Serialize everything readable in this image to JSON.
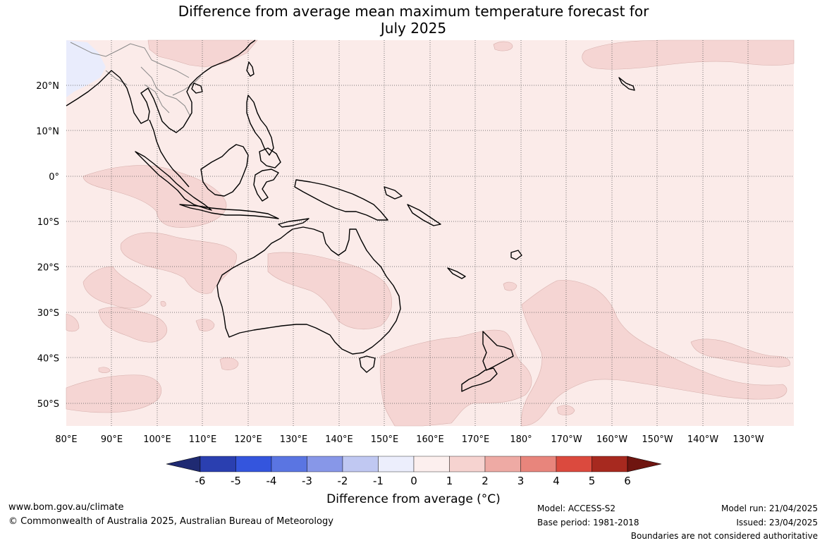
{
  "title_line1": "Difference from average mean maximum temperature forecast for",
  "title_line2": "July 2025",
  "map": {
    "lon_labels": [
      "80°E",
      "90°E",
      "100°E",
      "110°E",
      "120°E",
      "130°E",
      "140°E",
      "150°E",
      "160°E",
      "170°E",
      "180°",
      "170°W",
      "160°W",
      "150°W",
      "140°W",
      "130°W"
    ],
    "lat_labels": [
      "20°N",
      "10°N",
      "0°",
      "10°S",
      "20°S",
      "30°S",
      "40°S",
      "50°S"
    ],
    "colors": {
      "anomaly_0_to_1": "#fbebe9",
      "anomaly_1_to_2": "#f5d5d3",
      "anomaly_-1_to_0": "#e9ecfc",
      "coastline": "#000000",
      "borders": "#888888"
    }
  },
  "colorbar": {
    "ticks": [
      "-6",
      "-5",
      "-4",
      "-3",
      "-2",
      "-1",
      "0",
      "1",
      "2",
      "3",
      "4",
      "5",
      "6"
    ],
    "colors": [
      "#1f2a72",
      "#2a3fb0",
      "#3455dd",
      "#5a75e2",
      "#8797e8",
      "#c0c8f2",
      "#eceefc",
      "#fcefee",
      "#f6d3d0",
      "#eeaaa4",
      "#e8857c",
      "#db4a3e",
      "#a7291f",
      "#6f1510"
    ],
    "title": "Difference from average (°C)"
  },
  "footer": {
    "website": "www.bom.gov.au/climate",
    "copyright": "© Commonwealth of Australia 2025, Australian Bureau of Meteorology",
    "model": "Model: ACCESS-S2",
    "base_period": "Base period: 1981-2018",
    "model_run": "Model run: 21/04/2025",
    "issued": "Issued: 23/04/2025",
    "disclaimer": "Boundaries are not considered authoritative"
  }
}
